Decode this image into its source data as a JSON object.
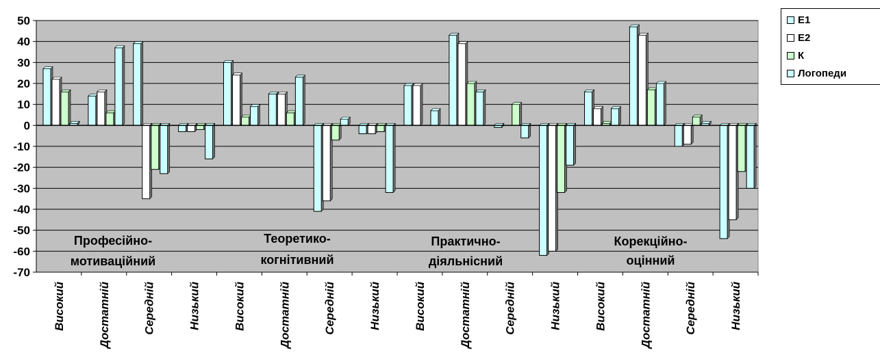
{
  "chart_data": {
    "type": "bar",
    "categories": [
      "Високий",
      "Достатній",
      "Середній",
      "Низький",
      "Високий",
      "Достатній",
      "Середній",
      "Низький",
      "Високий",
      "Достатній",
      "Середній",
      "Низький",
      "Високий",
      "Достатній",
      "Середній",
      "Низький"
    ],
    "groups": [
      {
        "line1": "Професійно-",
        "line2": "мотиваційний"
      },
      {
        "line1": "Теоретико-",
        "line2": "когнітивний"
      },
      {
        "line1": "Практично-",
        "line2": "діяльнісний"
      },
      {
        "line1": "Корекційно-",
        "line2": "оцінний"
      }
    ],
    "series": [
      {
        "name": "Е1",
        "color": "#ccffff",
        "values": [
          27,
          14,
          39,
          -3,
          30,
          15,
          -41,
          -4,
          19,
          43,
          -1,
          -62,
          16,
          47,
          -10,
          -54
        ]
      },
      {
        "name": "Е2",
        "color": "#ffffff",
        "values": [
          22,
          16,
          -35,
          -3,
          24,
          15,
          -36,
          -4,
          19,
          39,
          0,
          -60,
          8,
          43,
          -9,
          -45
        ]
      },
      {
        "name": "К",
        "color": "#ccffcc",
        "values": [
          16,
          6,
          -21,
          -2,
          4,
          6,
          -7,
          -3,
          0,
          20,
          10,
          -32,
          1,
          17,
          4,
          -22
        ]
      },
      {
        "name": "Логопеди",
        "color": "#ccffff",
        "values": [
          1,
          37,
          -23,
          -16,
          9,
          23,
          3,
          -32,
          7,
          16,
          -6,
          -19,
          8,
          20,
          1,
          -30
        ]
      }
    ],
    "ylim": [
      -70,
      50
    ],
    "yticks": [
      50,
      40,
      30,
      20,
      10,
      0,
      -10,
      -20,
      -30,
      -40,
      -50,
      -60,
      -70
    ],
    "grid": true,
    "legend": "top-right",
    "plot_background": "#c0c0c0"
  }
}
